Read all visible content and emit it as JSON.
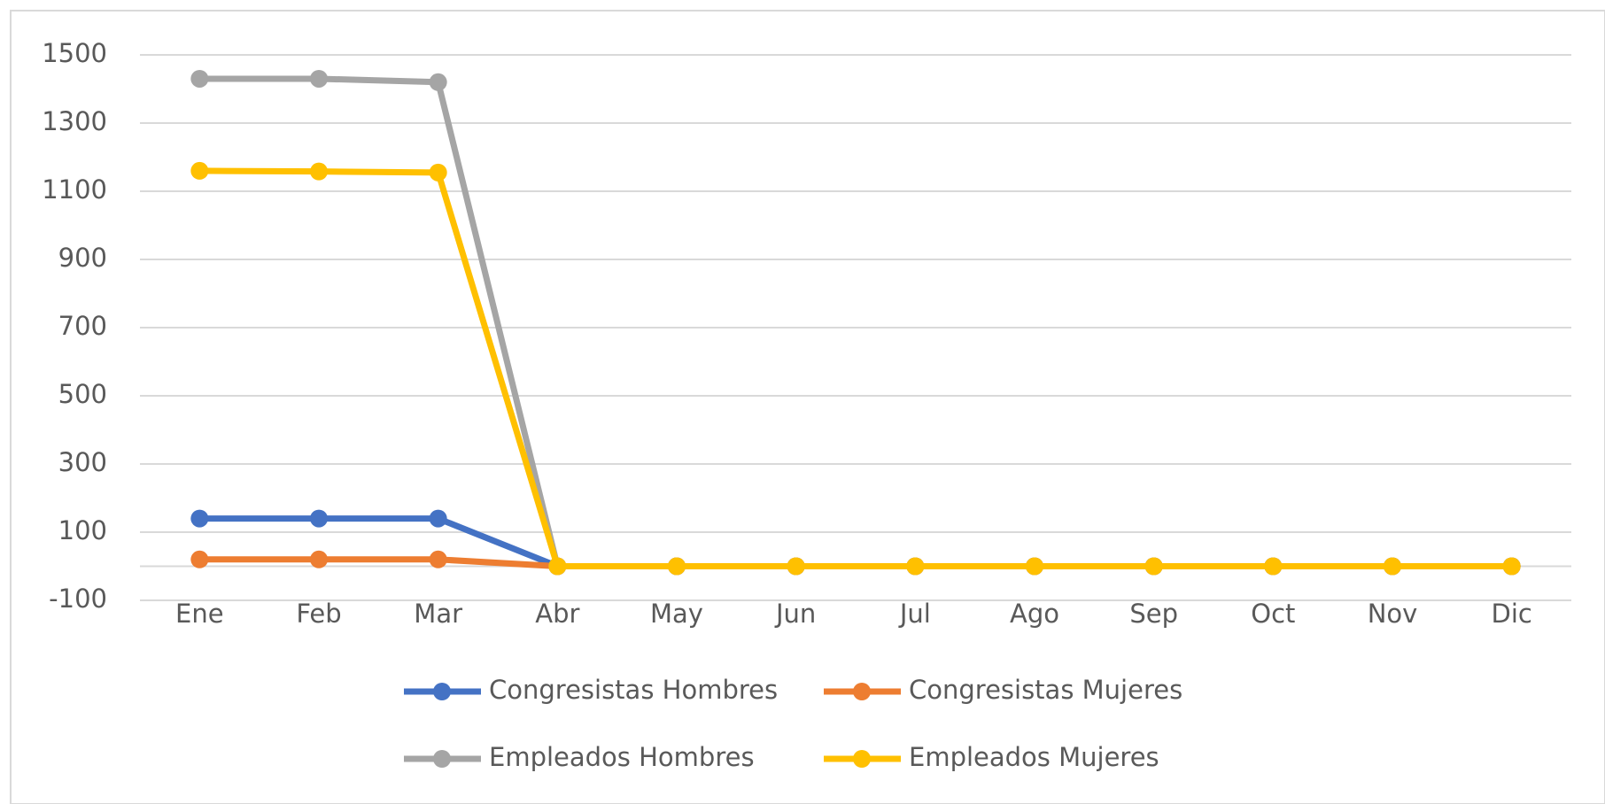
{
  "chart_data": {
    "type": "line",
    "categories": [
      "Ene",
      "Feb",
      "Mar",
      "Abr",
      "May",
      "Jun",
      "Jul",
      "Ago",
      "Sep",
      "Oct",
      "Nov",
      "Dic"
    ],
    "series": [
      {
        "name": "Congresistas Hombres",
        "color": "#4472c4",
        "values": [
          140,
          140,
          140,
          0,
          0,
          0,
          0,
          0,
          0,
          0,
          0,
          0
        ]
      },
      {
        "name": "Congresistas Mujeres",
        "color": "#ed7d31",
        "values": [
          20,
          20,
          20,
          0,
          0,
          0,
          0,
          0,
          0,
          0,
          0,
          0
        ]
      },
      {
        "name": "Empleados Hombres",
        "color": "#a5a5a5",
        "values": [
          1430,
          1430,
          1420,
          0,
          0,
          0,
          0,
          0,
          0,
          0,
          0,
          0
        ]
      },
      {
        "name": "Empleados Mujeres",
        "color": "#ffc000",
        "values": [
          1160,
          1158,
          1155,
          0,
          0,
          0,
          0,
          0,
          0,
          0,
          0,
          0
        ]
      }
    ],
    "ylim": [
      -100,
      1500
    ],
    "yticks": [
      -100,
      100,
      300,
      500,
      700,
      900,
      1100,
      1300,
      1500
    ],
    "grid": true,
    "legend": "bottom"
  }
}
